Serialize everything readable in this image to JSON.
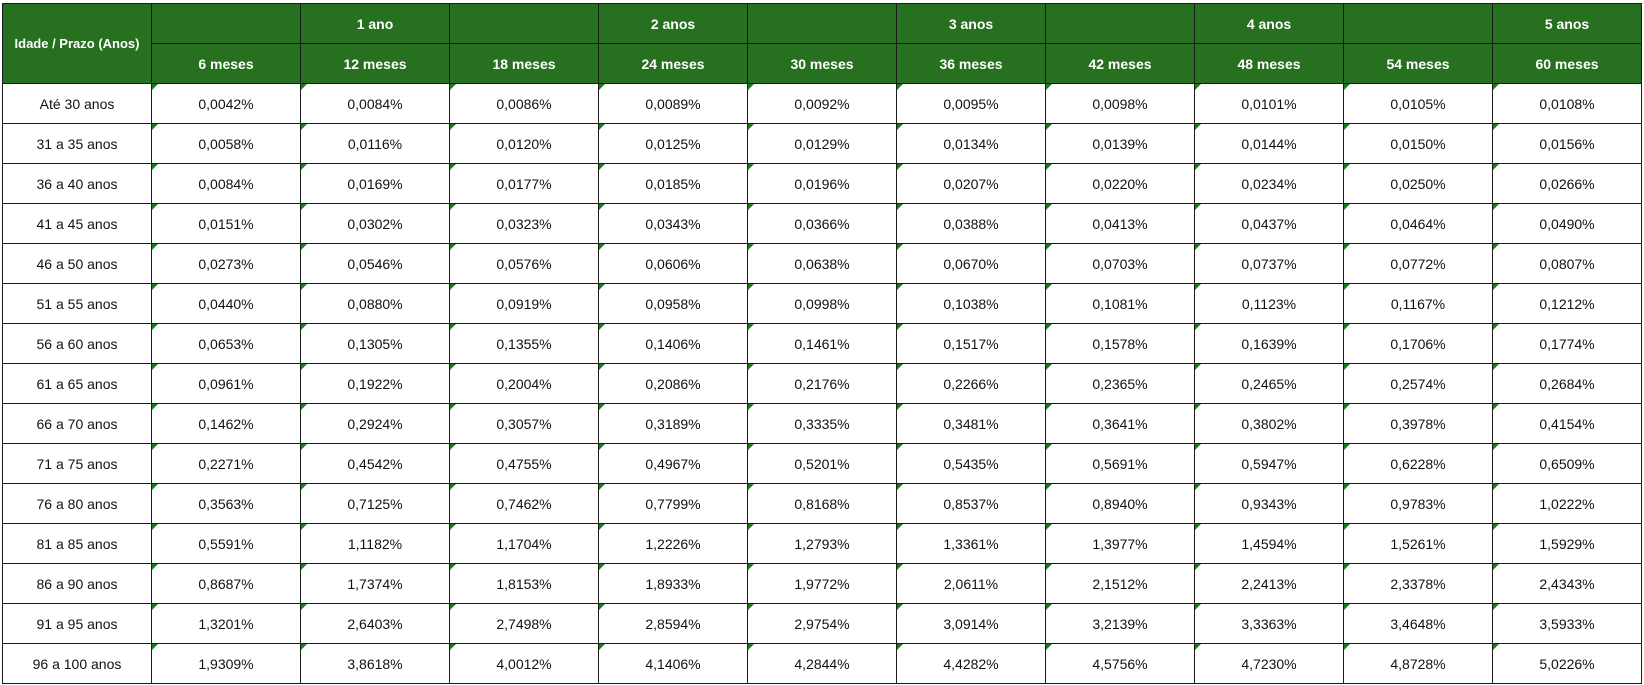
{
  "header": {
    "corner": "Idade / Prazo (Anos)",
    "years": [
      "",
      "1 ano",
      "",
      "2 anos",
      "",
      "3 anos",
      "",
      "4 anos",
      "",
      "5 anos"
    ],
    "months": [
      "6 meses",
      "12 meses",
      "18 meses",
      "24 meses",
      "30 meses",
      "36 meses",
      "42 meses",
      "48 meses",
      "54 meses",
      "60 meses"
    ]
  },
  "rows": [
    {
      "label": "Até 30 anos",
      "values": [
        "0,0042%",
        "0,0084%",
        "0,0086%",
        "0,0089%",
        "0,0092%",
        "0,0095%",
        "0,0098%",
        "0,0101%",
        "0,0105%",
        "0,0108%"
      ]
    },
    {
      "label": "31 a 35 anos",
      "values": [
        "0,0058%",
        "0,0116%",
        "0,0120%",
        "0,0125%",
        "0,0129%",
        "0,0134%",
        "0,0139%",
        "0,0144%",
        "0,0150%",
        "0,0156%"
      ]
    },
    {
      "label": "36 a 40 anos",
      "values": [
        "0,0084%",
        "0,0169%",
        "0,0177%",
        "0,0185%",
        "0,0196%",
        "0,0207%",
        "0,0220%",
        "0,0234%",
        "0,0250%",
        "0,0266%"
      ]
    },
    {
      "label": "41 a 45 anos",
      "values": [
        "0,0151%",
        "0,0302%",
        "0,0323%",
        "0,0343%",
        "0,0366%",
        "0,0388%",
        "0,0413%",
        "0,0437%",
        "0,0464%",
        "0,0490%"
      ]
    },
    {
      "label": "46 a 50 anos",
      "values": [
        "0,0273%",
        "0,0546%",
        "0,0576%",
        "0,0606%",
        "0,0638%",
        "0,0670%",
        "0,0703%",
        "0,0737%",
        "0,0772%",
        "0,0807%"
      ]
    },
    {
      "label": "51 a 55 anos",
      "values": [
        "0,0440%",
        "0,0880%",
        "0,0919%",
        "0,0958%",
        "0,0998%",
        "0,1038%",
        "0,1081%",
        "0,1123%",
        "0,1167%",
        "0,1212%"
      ]
    },
    {
      "label": "56 a 60 anos",
      "values": [
        "0,0653%",
        "0,1305%",
        "0,1355%",
        "0,1406%",
        "0,1461%",
        "0,1517%",
        "0,1578%",
        "0,1639%",
        "0,1706%",
        "0,1774%"
      ]
    },
    {
      "label": "61 a 65 anos",
      "values": [
        "0,0961%",
        "0,1922%",
        "0,2004%",
        "0,2086%",
        "0,2176%",
        "0,2266%",
        "0,2365%",
        "0,2465%",
        "0,2574%",
        "0,2684%"
      ]
    },
    {
      "label": "66 a 70 anos",
      "values": [
        "0,1462%",
        "0,2924%",
        "0,3057%",
        "0,3189%",
        "0,3335%",
        "0,3481%",
        "0,3641%",
        "0,3802%",
        "0,3978%",
        "0,4154%"
      ]
    },
    {
      "label": "71 a 75 anos",
      "values": [
        "0,2271%",
        "0,4542%",
        "0,4755%",
        "0,4967%",
        "0,5201%",
        "0,5435%",
        "0,5691%",
        "0,5947%",
        "0,6228%",
        "0,6509%"
      ]
    },
    {
      "label": "76 a 80 anos",
      "values": [
        "0,3563%",
        "0,7125%",
        "0,7462%",
        "0,7799%",
        "0,8168%",
        "0,8537%",
        "0,8940%",
        "0,9343%",
        "0,9783%",
        "1,0222%"
      ]
    },
    {
      "label": "81 a 85 anos",
      "values": [
        "0,5591%",
        "1,1182%",
        "1,1704%",
        "1,2226%",
        "1,2793%",
        "1,3361%",
        "1,3977%",
        "1,4594%",
        "1,5261%",
        "1,5929%"
      ]
    },
    {
      "label": "86 a 90 anos",
      "values": [
        "0,8687%",
        "1,7374%",
        "1,8153%",
        "1,8933%",
        "1,9772%",
        "2,0611%",
        "2,1512%",
        "2,2413%",
        "2,3378%",
        "2,4343%"
      ]
    },
    {
      "label": "91 a 95 anos",
      "values": [
        "1,3201%",
        "2,6403%",
        "2,7498%",
        "2,8594%",
        "2,9754%",
        "3,0914%",
        "3,2139%",
        "3,3363%",
        "3,4648%",
        "3,5933%"
      ]
    },
    {
      "label": "96 a 100 anos",
      "values": [
        "1,9309%",
        "3,8618%",
        "4,0012%",
        "4,1406%",
        "4,2844%",
        "4,4282%",
        "4,5756%",
        "4,7230%",
        "4,8728%",
        "5,0226%"
      ]
    }
  ],
  "colors": {
    "header_bg": "#26701f",
    "header_text": "#ffffff",
    "cell_marker": "#1e7a1e",
    "border": "#1a1a1a"
  }
}
